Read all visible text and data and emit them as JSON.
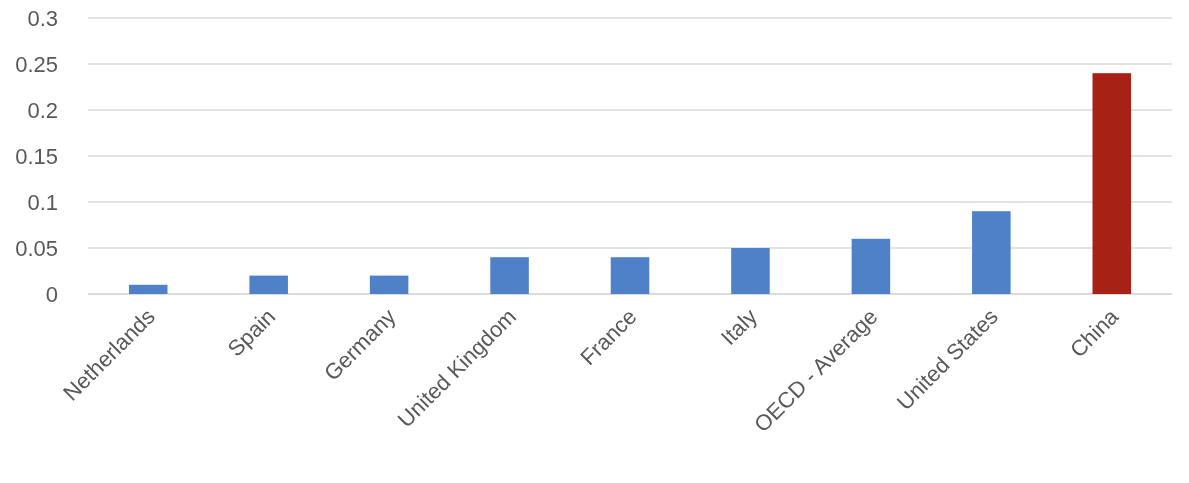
{
  "chart_data": {
    "type": "bar",
    "categories": [
      "Netherlands",
      "Spain",
      "Germany",
      "United Kingdom",
      "France",
      "Italy",
      "OECD - Average",
      "United States",
      "China"
    ],
    "values": [
      0.01,
      0.02,
      0.02,
      0.04,
      0.04,
      0.05,
      0.06,
      0.09,
      0.24
    ],
    "colors": [
      "#4f81c9",
      "#4f81c9",
      "#4f81c9",
      "#4f81c9",
      "#4f81c9",
      "#4f81c9",
      "#4f81c9",
      "#4f81c9",
      "#a82115"
    ],
    "ylim": [
      0,
      0.3
    ],
    "yticks": [
      0,
      0.05,
      0.1,
      0.15,
      0.2,
      0.25,
      0.3
    ],
    "grid": "y"
  }
}
